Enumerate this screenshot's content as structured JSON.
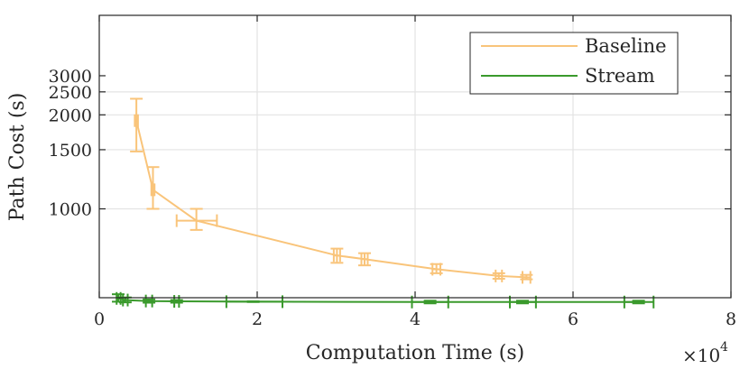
{
  "chart_data": {
    "type": "line",
    "title": "",
    "xlabel": "Computation Time (s)",
    "ylabel": "Path Cost (s)",
    "x_multiplier_label": "×10",
    "x_multiplier_exponent": "4",
    "xlim": [
      0,
      8
    ],
    "ylim": [
      0,
      3000
    ],
    "y_scale": "nonlinear (compressed toward top)",
    "grid": true,
    "legend_placement": "top-right",
    "x_ticks": [
      0,
      2,
      4,
      6,
      8
    ],
    "x_tick_labels": [
      "0",
      "2",
      "4",
      "6",
      "8"
    ],
    "y_ticks": [
      1000,
      1500,
      2000,
      2500,
      3000
    ],
    "y_tick_labels": [
      "1000",
      "1500",
      "2000",
      "2500",
      "3000"
    ],
    "colors": {
      "Baseline": "#f9c47a",
      "Stream": "#3a9a2c"
    },
    "series": [
      {
        "name": "Baseline",
        "points": [
          {
            "x": 0.47,
            "y": 1900,
            "y_lo": 1480,
            "y_hi": 2330,
            "x_lo": 0.45,
            "x_hi": 0.49
          },
          {
            "x": 0.68,
            "y": 1130,
            "y_lo": 1000,
            "y_hi": 1320,
            "x_lo": 0.66,
            "x_hi": 0.7
          },
          {
            "x": 1.23,
            "y": 930,
            "y_lo": 880,
            "y_hi": 1000,
            "x_lo": 0.98,
            "x_hi": 1.49
          },
          {
            "x": 3.01,
            "y": 760,
            "y_lo": 730,
            "y_hi": 790,
            "x_lo": 2.97,
            "x_hi": 3.05
          },
          {
            "x": 3.36,
            "y": 745,
            "y_lo": 720,
            "y_hi": 770,
            "x_lo": 3.32,
            "x_hi": 3.4
          },
          {
            "x": 4.27,
            "y": 705,
            "y_lo": 690,
            "y_hi": 725,
            "x_lo": 4.22,
            "x_hi": 4.32
          },
          {
            "x": 5.06,
            "y": 680,
            "y_lo": 670,
            "y_hi": 690,
            "x_lo": 5.02,
            "x_hi": 5.1
          },
          {
            "x": 5.41,
            "y": 675,
            "y_lo": 668,
            "y_hi": 684,
            "x_lo": 5.36,
            "x_hi": 5.46
          }
        ]
      },
      {
        "name": "Stream",
        "points": [
          {
            "x": 0.24,
            "y": 605,
            "y_lo": 595,
            "y_hi": 618,
            "x_lo": 0.22,
            "x_hi": 0.27
          },
          {
            "x": 0.33,
            "y": 600,
            "y_lo": 593,
            "y_hi": 608,
            "x_lo": 0.3,
            "x_hi": 0.36
          },
          {
            "x": 0.63,
            "y": 597,
            "y_lo": 592,
            "y_hi": 602,
            "x_lo": 0.59,
            "x_hi": 0.67
          },
          {
            "x": 0.98,
            "y": 596,
            "y_lo": 592,
            "y_hi": 600,
            "x_lo": 0.95,
            "x_hi": 1.01
          },
          {
            "x": 1.95,
            "y": 595,
            "y_lo": 594,
            "y_hi": 596,
            "x_lo": 1.61,
            "x_hi": 2.32
          },
          {
            "x": 4.19,
            "y": 594,
            "y_lo": 590,
            "y_hi": 598,
            "x_lo": 3.96,
            "x_hi": 4.42
          },
          {
            "x": 5.36,
            "y": 594,
            "y_lo": 590,
            "y_hi": 598,
            "x_lo": 5.2,
            "x_hi": 5.53
          },
          {
            "x": 6.83,
            "y": 594,
            "y_lo": 590,
            "y_hi": 598,
            "x_lo": 6.65,
            "x_hi": 7.02
          }
        ]
      }
    ]
  }
}
